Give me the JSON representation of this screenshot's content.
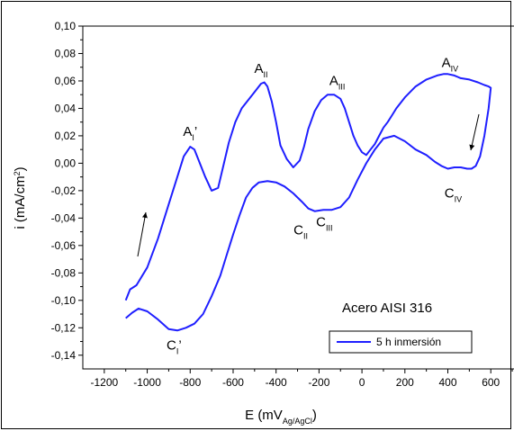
{
  "chart_data": {
    "type": "line",
    "xlabel": "E (mV",
    "xlabel_sub": "Ag/AgCl",
    "xlabel_close": ")",
    "ylabel": "i (mA/cm",
    "ylabel_sup": "2",
    "ylabel_close": ")",
    "xlim": [
      -1300,
      750
    ],
    "ylim": [
      -0.15,
      0.1
    ],
    "x_ticks": [
      -1200,
      -1000,
      -800,
      -600,
      -400,
      -200,
      0,
      200,
      400,
      600
    ],
    "x_tick_labels": [
      "-1200",
      "-1000",
      "-800",
      "-600",
      "-400",
      "-200",
      "0",
      "200",
      "400",
      "600"
    ],
    "y_ticks": [
      -0.14,
      -0.12,
      -0.1,
      -0.08,
      -0.06,
      -0.04,
      -0.02,
      0.0,
      0.02,
      0.04,
      0.06,
      0.08,
      0.1
    ],
    "y_tick_labels": [
      "-0,14",
      "-0,12",
      "-0,10",
      "-0,08",
      "-0,06",
      "-0,04",
      "-0,02",
      "0,00",
      "0,02",
      "0,04",
      "0,06",
      "0,08",
      "0,10"
    ],
    "legend_position": "bottom-right",
    "series": [
      {
        "name": "5 h inmersión",
        "color": "#1f1fff",
        "x": [
          -1100,
          -1080,
          -1050,
          -1000,
          -950,
          -900,
          -860,
          -830,
          -800,
          -780,
          -760,
          -730,
          -700,
          -670,
          -650,
          -620,
          -590,
          -560,
          -530,
          -500,
          -470,
          -455,
          -440,
          -420,
          -400,
          -380,
          -350,
          -320,
          -290,
          -270,
          -250,
          -220,
          -190,
          -160,
          -130,
          -100,
          -80,
          -60,
          -40,
          -20,
          0,
          20,
          40,
          60,
          80,
          100,
          120,
          140,
          160,
          200,
          250,
          300,
          350,
          380,
          400,
          430,
          460,
          500,
          540,
          570,
          590,
          600,
          590,
          570,
          550,
          530,
          510,
          490,
          460,
          430,
          400,
          370,
          340,
          300,
          250,
          200,
          150,
          100,
          60,
          20,
          -20,
          -60,
          -100,
          -140,
          -180,
          -220,
          -250,
          -280,
          -320,
          -360,
          -400,
          -440,
          -480,
          -510,
          -540,
          -570,
          -600,
          -630,
          -660,
          -700,
          -740,
          -780,
          -820,
          -860,
          -900,
          -950,
          -1000,
          -1040,
          -1070,
          -1100
        ],
        "y": [
          -0.1,
          -0.092,
          -0.089,
          -0.076,
          -0.055,
          -0.03,
          -0.01,
          0.005,
          0.012,
          0.01,
          0.002,
          -0.01,
          -0.02,
          -0.018,
          -0.005,
          0.015,
          0.03,
          0.04,
          0.046,
          0.052,
          0.058,
          0.059,
          0.056,
          0.045,
          0.03,
          0.013,
          0.003,
          -0.003,
          0.002,
          0.012,
          0.025,
          0.038,
          0.046,
          0.05,
          0.05,
          0.047,
          0.04,
          0.03,
          0.02,
          0.013,
          0.008,
          0.006,
          0.01,
          0.014,
          0.02,
          0.026,
          0.03,
          0.035,
          0.04,
          0.048,
          0.056,
          0.061,
          0.064,
          0.065,
          0.065,
          0.064,
          0.062,
          0.061,
          0.059,
          0.057,
          0.056,
          0.055,
          0.04,
          0.02,
          0.005,
          -0.002,
          -0.004,
          -0.004,
          -0.003,
          -0.003,
          -0.004,
          -0.002,
          0.001,
          0.006,
          0.01,
          0.016,
          0.02,
          0.018,
          0.01,
          0.0,
          -0.012,
          -0.025,
          -0.032,
          -0.034,
          -0.034,
          -0.035,
          -0.033,
          -0.028,
          -0.022,
          -0.017,
          -0.014,
          -0.013,
          -0.014,
          -0.018,
          -0.025,
          -0.038,
          -0.052,
          -0.067,
          -0.082,
          -0.097,
          -0.11,
          -0.117,
          -0.12,
          -0.122,
          -0.121,
          -0.114,
          -0.108,
          -0.106,
          -0.109,
          -0.113
        ]
      }
    ],
    "annotations": [
      {
        "main": "A",
        "sub": "I",
        "prime": "’",
        "x": -800,
        "y": 0.02
      },
      {
        "main": "A",
        "sub": "II",
        "prime": "",
        "x": -470,
        "y": 0.066
      },
      {
        "main": "A",
        "sub": "III",
        "prime": "",
        "x": -115,
        "y": 0.057
      },
      {
        "main": "A",
        "sub": "IV",
        "prime": "",
        "x": 410,
        "y": 0.07
      },
      {
        "main": "C",
        "sub": "II",
        "prime": "",
        "x": -285,
        "y": -0.052
      },
      {
        "main": "C",
        "sub": "III",
        "prime": "",
        "x": -175,
        "y": -0.046
      },
      {
        "main": "C",
        "sub": "IV",
        "prime": "",
        "x": 425,
        "y": -0.025
      },
      {
        "main": "C",
        "sub": "I",
        "prime": "’",
        "x": -875,
        "y": -0.136
      }
    ],
    "sample_label": "Acero AISI 316"
  }
}
